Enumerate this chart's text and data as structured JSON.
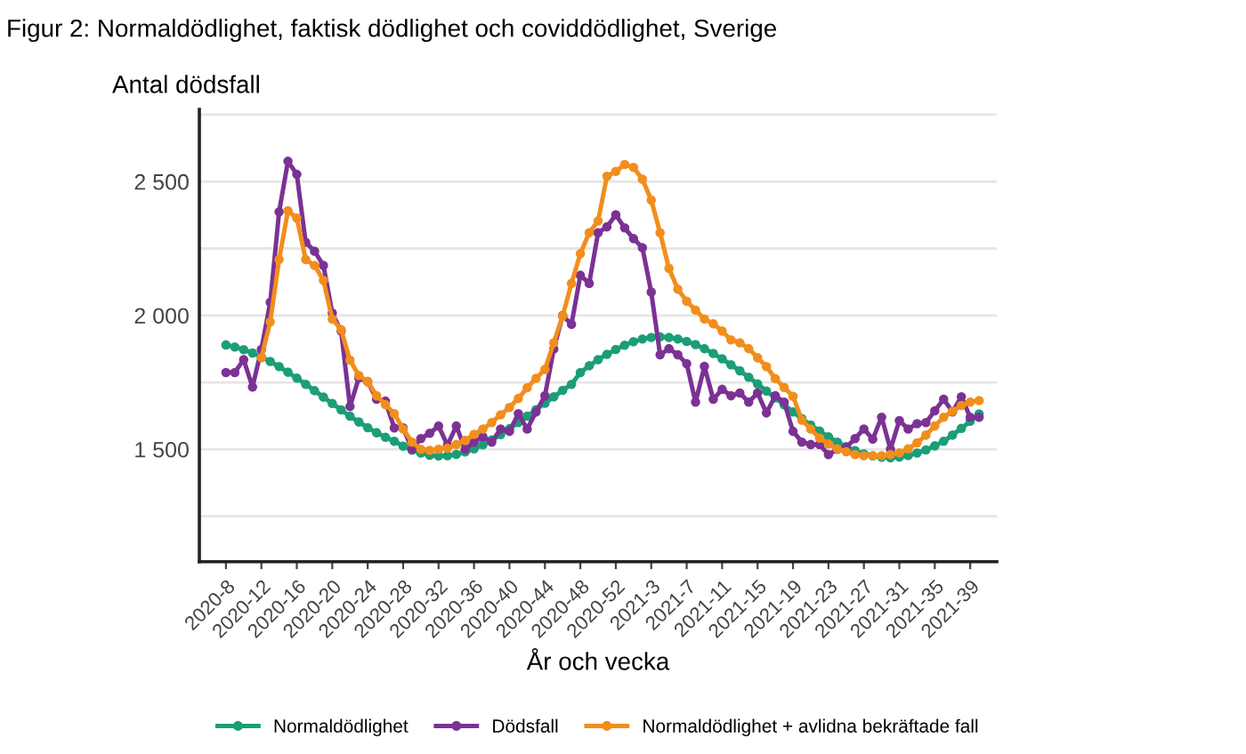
{
  "chart_data": {
    "type": "line",
    "title": "Figur 2: Normaldödlighet, faktisk dödlighet och coviddödlighet, Sverige",
    "ylabel": "Antal dödsfall",
    "xlabel": "År och vecka",
    "categories": [
      "2020-8",
      null,
      null,
      null,
      "2020-12",
      null,
      null,
      null,
      "2020-16",
      null,
      null,
      null,
      "2020-20",
      null,
      null,
      null,
      "2020-24",
      null,
      null,
      null,
      "2020-28",
      null,
      null,
      null,
      "2020-32",
      null,
      null,
      null,
      "2020-36",
      null,
      null,
      null,
      "2020-40",
      null,
      null,
      null,
      "2020-44",
      null,
      null,
      null,
      "2020-48",
      null,
      null,
      null,
      "2020-52",
      null,
      null,
      null,
      "2021-3",
      null,
      null,
      null,
      "2021-7",
      null,
      null,
      null,
      "2021-11",
      null,
      null,
      null,
      "2021-15",
      null,
      null,
      null,
      "2021-19",
      null,
      null,
      null,
      "2021-23",
      null,
      null,
      null,
      "2021-27",
      null,
      null,
      null,
      "2021-31",
      null,
      null,
      null,
      "2021-35",
      null,
      null,
      null,
      "2021-39",
      null
    ],
    "series": [
      {
        "name": "Normaldödlighet",
        "color": "#1b9e77",
        "values": [
          1890,
          1882,
          1872,
          1860,
          1845,
          1828,
          1809,
          1788,
          1766,
          1743,
          1719,
          1695,
          1671,
          1647,
          1624,
          1602,
          1581,
          1562,
          1545,
          1530,
          1512,
          1497,
          1486,
          1478,
          1475,
          1476,
          1481,
          1490,
          1502,
          1517,
          1535,
          1555,
          1577,
          1600,
          1624,
          1648,
          1672,
          1696,
          1720,
          1743,
          1787,
          1812,
          1835,
          1855,
          1873,
          1889,
          1902,
          1912,
          1918,
          1920,
          1918,
          1912,
          1903,
          1891,
          1876,
          1858,
          1838,
          1816,
          1793,
          1769,
          1744,
          1718,
          1692,
          1666,
          1640,
          1615,
          1591,
          1568,
          1547,
          1527,
          1510,
          1495,
          1483,
          1475,
          1470,
          1469,
          1471,
          1477,
          1486,
          1498,
          1513,
          1530,
          1553,
          1578,
          1605,
          1632
        ]
      },
      {
        "name": "Dödsfall",
        "color": "#7b3294",
        "values": [
          1787,
          1787,
          1835,
          1733,
          1873,
          2049,
          2387,
          2576,
          2527,
          2273,
          2240,
          2187,
          2009,
          1942,
          1660,
          1767,
          1753,
          1687,
          1680,
          1580,
          1580,
          1500,
          1540,
          1560,
          1587,
          1515,
          1587,
          1500,
          1527,
          1547,
          1527,
          1576,
          1567,
          1633,
          1576,
          1640,
          1700,
          1875,
          2000,
          1967,
          2150,
          2120,
          2309,
          2331,
          2376,
          2327,
          2287,
          2253,
          2087,
          1853,
          1876,
          1853,
          1820,
          1676,
          1810,
          1687,
          1724,
          1700,
          1710,
          1676,
          1710,
          1636,
          1700,
          1676,
          1567,
          1527,
          1518,
          1518,
          1480,
          1500,
          1507,
          1540,
          1576,
          1538,
          1620,
          1500,
          1607,
          1576,
          1596,
          1600,
          1644,
          1687,
          1640,
          1696,
          1620,
          1620
        ]
      },
      {
        "name": "Normaldödlighet + avlidna bekräftade fall",
        "color": "#f28e1c",
        "values": [
          null,
          null,
          null,
          null,
          1842,
          1976,
          2209,
          2391,
          2364,
          2209,
          2187,
          2131,
          1987,
          1947,
          1833,
          1776,
          1753,
          1700,
          1667,
          1633,
          1576,
          1527,
          1500,
          1496,
          1500,
          1504,
          1518,
          1533,
          1556,
          1576,
          1600,
          1629,
          1656,
          1690,
          1730,
          1765,
          1798,
          1898,
          1998,
          2120,
          2231,
          2309,
          2353,
          2520,
          2538,
          2564,
          2553,
          2509,
          2431,
          2309,
          2176,
          2098,
          2053,
          2020,
          1987,
          1969,
          1942,
          1909,
          1898,
          1876,
          1842,
          1809,
          1764,
          1731,
          1698,
          1609,
          1576,
          1542,
          1520,
          1502,
          1491,
          1480,
          1476,
          1476,
          1476,
          1480,
          1487,
          1502,
          1524,
          1553,
          1587,
          1620,
          1642,
          1664,
          1676,
          1682
        ]
      }
    ],
    "ylim": [
      1080,
      2770
    ],
    "yticks": [
      {
        "value": 1250,
        "label": null
      },
      {
        "value": 1500,
        "label": "1 500"
      },
      {
        "value": 1750,
        "label": null
      },
      {
        "value": 2000,
        "label": "2 000"
      },
      {
        "value": 2250,
        "label": null
      },
      {
        "value": 2500,
        "label": "2 500"
      },
      {
        "value": 2750,
        "label": null
      }
    ],
    "grid": "y",
    "legend": "bottom",
    "marker": "circle",
    "line_style": "solid"
  }
}
